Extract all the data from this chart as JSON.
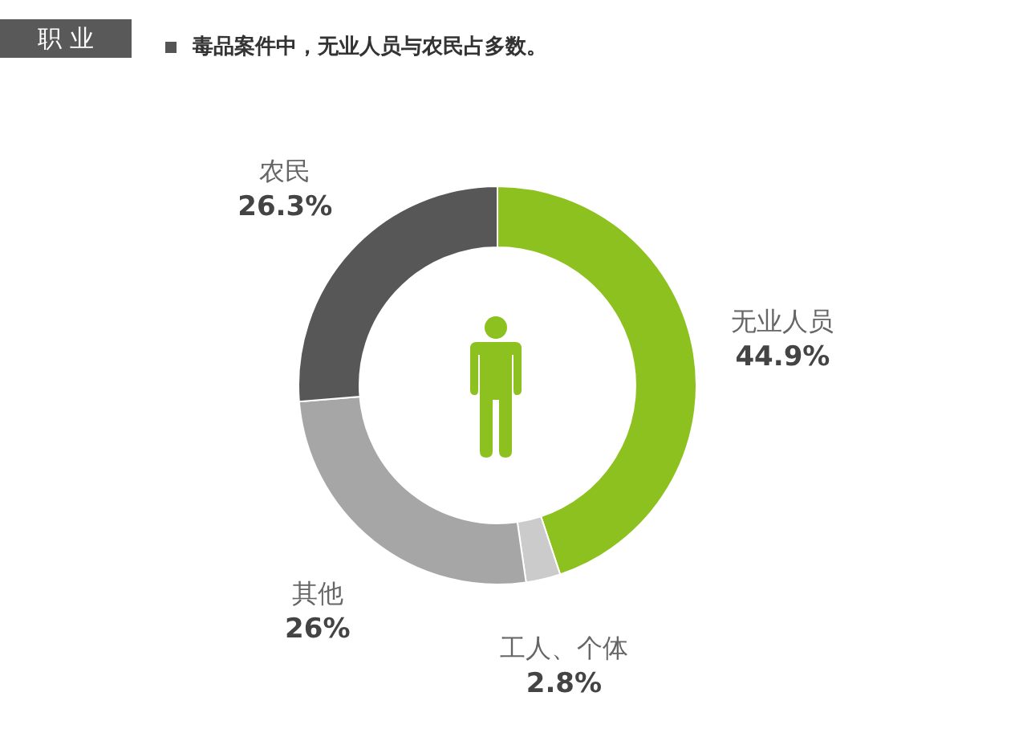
{
  "chart_data": {
    "type": "donut",
    "title": "职 业",
    "subtitle": "毒品案件中，无业人员与农民占多数。",
    "categories": [
      "无业人员",
      "工人、个体",
      "其他",
      "农民"
    ],
    "values": [
      44.9,
      2.8,
      26,
      26.3
    ],
    "value_labels": [
      "44.9%",
      "2.8%",
      "26%",
      "26.3%"
    ],
    "colors": [
      "#8cc11f",
      "#cbcbcb",
      "#a6a6a6",
      "#575757"
    ]
  }
}
